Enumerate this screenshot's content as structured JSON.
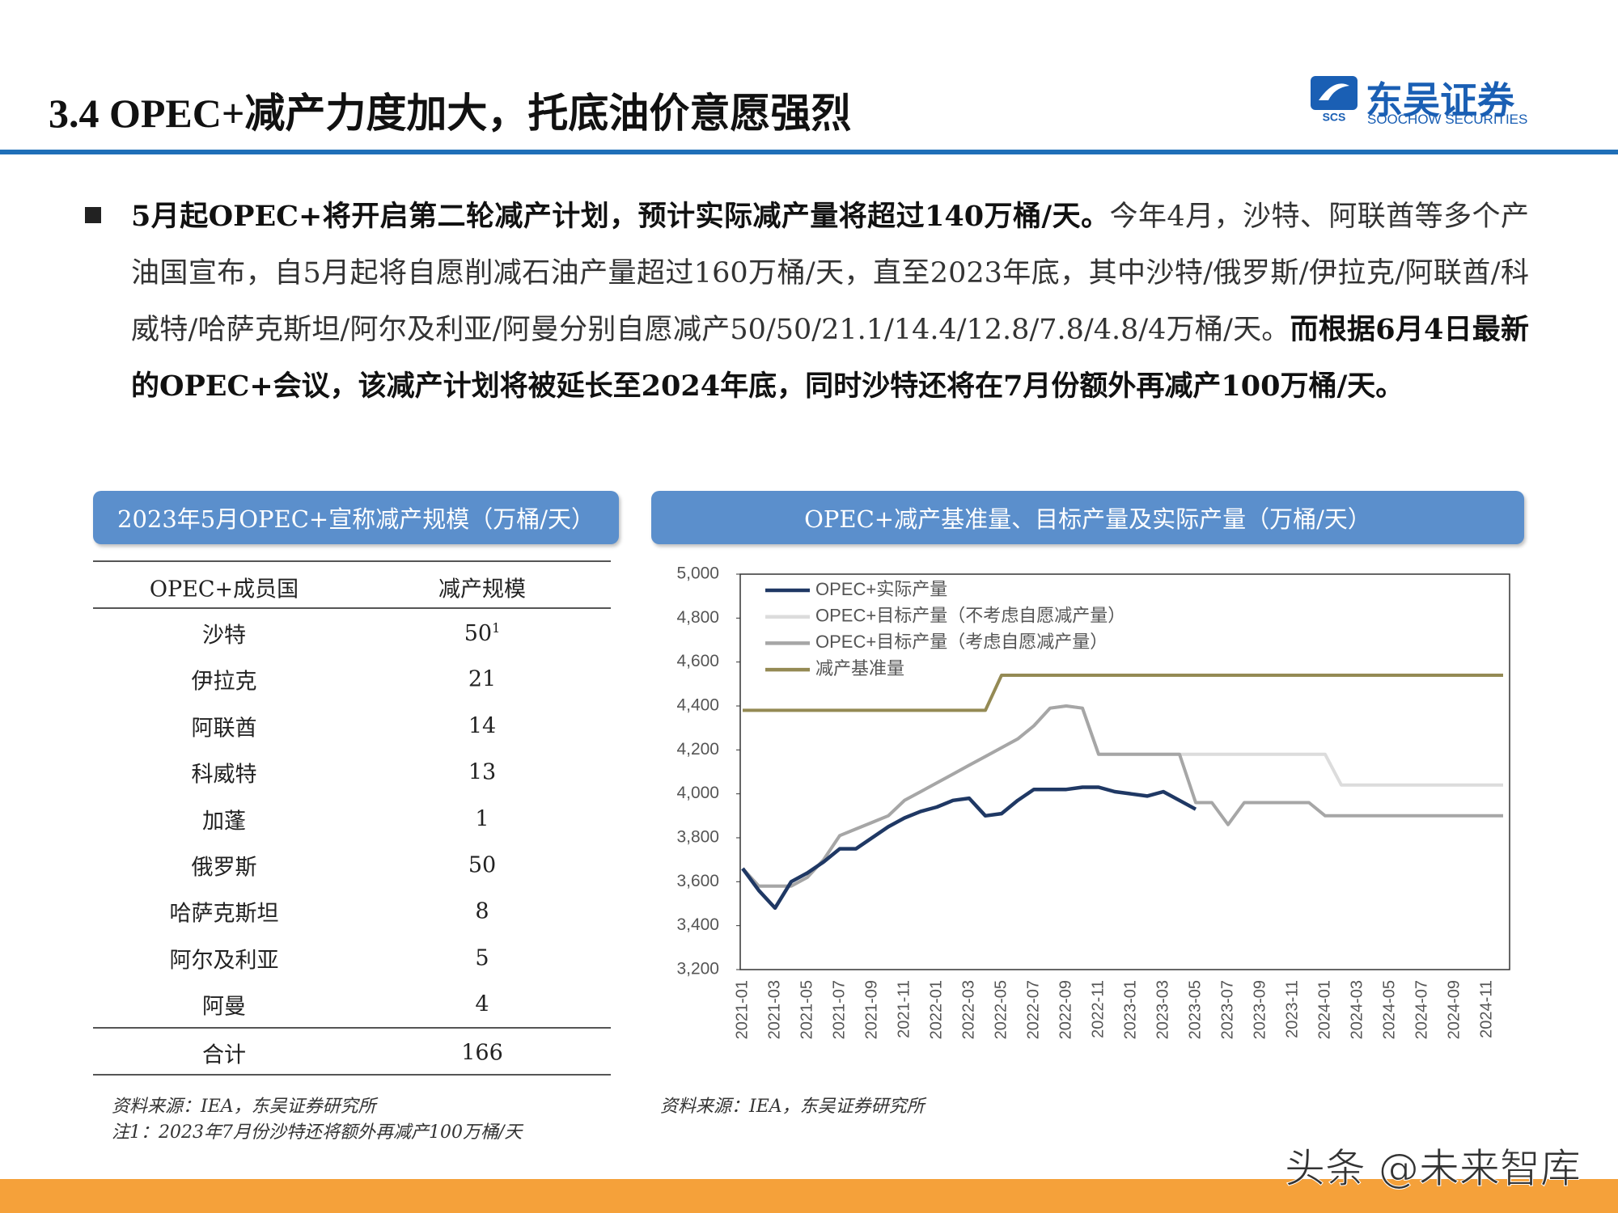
{
  "header": {
    "title": "3.4 OPEC+减产力度加大，托底油价意愿强烈",
    "logo_mark": "SCS",
    "logo_name": "东吴证券",
    "logo_subtitle": "SOOCHOW SECURITIES"
  },
  "paragraph": [
    {
      "text": "5月起OPEC+将开启第二轮减产计划，预计实际减产量将超过140万桶/天。",
      "bold": true
    },
    {
      "text": "今年4月，沙特、阿联酋等多个产油国宣布，自5月起将自愿削减石油产量超过160万桶/天，直至2023年底，其中沙特/俄罗斯/伊拉克/阿联酋/科威特/哈萨克斯坦/阿尔及利亚/阿曼分别自愿减产50/50/21.1/14.4/12.8/7.8/4.8/4万桶/天。",
      "bold": false
    },
    {
      "text": "而根据6月4日最新的OPEC+会议，该减产计划将被延长至2024年底，同时沙特还将在7月份额外再减产100万桶/天。",
      "bold": true
    },
    {
      "text": "",
      "bold": false
    }
  ],
  "table": {
    "title": "2023年5月OPEC+宣称减产规模（万桶/天）",
    "header": [
      "OPEC+成员国",
      "减产规模"
    ],
    "rows": [
      {
        "country": "沙特",
        "value": "50",
        "note_ref": "1"
      },
      {
        "country": "伊拉克",
        "value": "21"
      },
      {
        "country": "阿联酋",
        "value": "14"
      },
      {
        "country": "科威特",
        "value": "13"
      },
      {
        "country": "加蓬",
        "value": "1"
      },
      {
        "country": "俄罗斯",
        "value": "50"
      },
      {
        "country": "哈萨克斯坦",
        "value": "8"
      },
      {
        "country": "阿尔及利亚",
        "value": "5"
      },
      {
        "country": "阿曼",
        "value": "4"
      },
      {
        "country": "合计",
        "value": "166"
      }
    ],
    "source": "资料来源：IEA，东吴证券研究所",
    "note": "注1：2023年7月份沙特还将额外再减产100万桶/天"
  },
  "chart_data": {
    "type": "line",
    "title": "OPEC+减产基准量、目标产量及实际产量（万桶/天）",
    "source": "资料来源：IEA，东吴证券研究所",
    "categories": [
      "2021-01",
      null,
      "2021-03",
      null,
      "2021-05",
      null,
      "2021-07",
      null,
      "2021-09",
      null,
      "2021-11",
      null,
      "2022-01",
      null,
      "2022-03",
      null,
      "2022-05",
      null,
      "2022-07",
      null,
      "2022-09",
      null,
      "2022-11",
      null,
      "2023-01",
      null,
      "2023-03",
      null,
      "2023-05",
      null,
      "2023-07",
      null,
      "2023-09",
      null,
      "2023-11",
      null,
      "2024-01",
      null,
      "2024-03",
      null,
      "2024-05",
      null,
      "2024-07",
      null,
      "2024-09",
      null,
      "2024-11",
      null
    ],
    "ylim": [
      3200,
      5000
    ],
    "yticks": [
      {
        "value": 3200,
        "label": "3,200"
      },
      {
        "value": 3400,
        "label": "3,400"
      },
      {
        "value": 3600,
        "label": "3,600"
      },
      {
        "value": 3800,
        "label": "3,800"
      },
      {
        "value": 4000,
        "label": "4,000"
      },
      {
        "value": 4200,
        "label": "4,200"
      },
      {
        "value": 4400,
        "label": "4,400"
      },
      {
        "value": 4600,
        "label": "4,600"
      },
      {
        "value": 4800,
        "label": "4,800"
      },
      {
        "value": 5000,
        "label": "5,000"
      }
    ],
    "legend": "upper left",
    "series": [
      {
        "name": "OPEC+实际产量",
        "color": "#1f3864",
        "values": [
          3660,
          3560,
          3480,
          3600,
          3640,
          3690,
          3750,
          3750,
          3800,
          3850,
          3890,
          3920,
          3940,
          3970,
          3980,
          3900,
          3910,
          3970,
          4020,
          4020,
          4020,
          4030,
          4030,
          4010,
          4000,
          3990,
          4010,
          3970,
          3930,
          null,
          null,
          null,
          null,
          null,
          null,
          null,
          null,
          null,
          null,
          null,
          null,
          null,
          null,
          null,
          null,
          null,
          null,
          null
        ]
      },
      {
        "name": "OPEC+目标产量（不考虑自愿减产量）",
        "color": "#dcdcdc",
        "values": [
          3660,
          3580,
          3580,
          3580,
          3620,
          3700,
          3810,
          3840,
          3870,
          3900,
          3970,
          4010,
          4050,
          4090,
          4130,
          4170,
          4210,
          4250,
          4310,
          4390,
          4400,
          4390,
          4180,
          4180,
          4180,
          4180,
          4180,
          4180,
          4180,
          4180,
          4180,
          4180,
          4180,
          4180,
          4180,
          4180,
          4180,
          4040,
          4040,
          4040,
          4040,
          4040,
          4040,
          4040,
          4040,
          4040,
          4040,
          4040
        ]
      },
      {
        "name": "OPEC+目标产量（考虑自愿减产量）",
        "color": "#a6a6a6",
        "values": [
          3660,
          3580,
          3580,
          3580,
          3620,
          3700,
          3810,
          3840,
          3870,
          3900,
          3970,
          4010,
          4050,
          4090,
          4130,
          4170,
          4210,
          4250,
          4310,
          4390,
          4400,
          4390,
          4180,
          4180,
          4180,
          4180,
          4180,
          4180,
          3960,
          3960,
          3860,
          3960,
          3960,
          3960,
          3960,
          3960,
          3900,
          3900,
          3900,
          3900,
          3900,
          3900,
          3900,
          3900,
          3900,
          3900,
          3900,
          3900
        ]
      },
      {
        "name": "减产基准量",
        "color": "#948a54",
        "values": [
          4380,
          4380,
          4380,
          4380,
          4380,
          4380,
          4380,
          4380,
          4380,
          4380,
          4380,
          4380,
          4380,
          4380,
          4380,
          4380,
          4540,
          4540,
          4540,
          4540,
          4540,
          4540,
          4540,
          4540,
          4540,
          4540,
          4540,
          4540,
          4540,
          4540,
          4540,
          4540,
          4540,
          4540,
          4540,
          4540,
          4540,
          4540,
          4540,
          4540,
          4540,
          4540,
          4540,
          4540,
          4540,
          4540,
          4540,
          4540
        ]
      }
    ]
  },
  "watermark": "头条 @未来智库"
}
